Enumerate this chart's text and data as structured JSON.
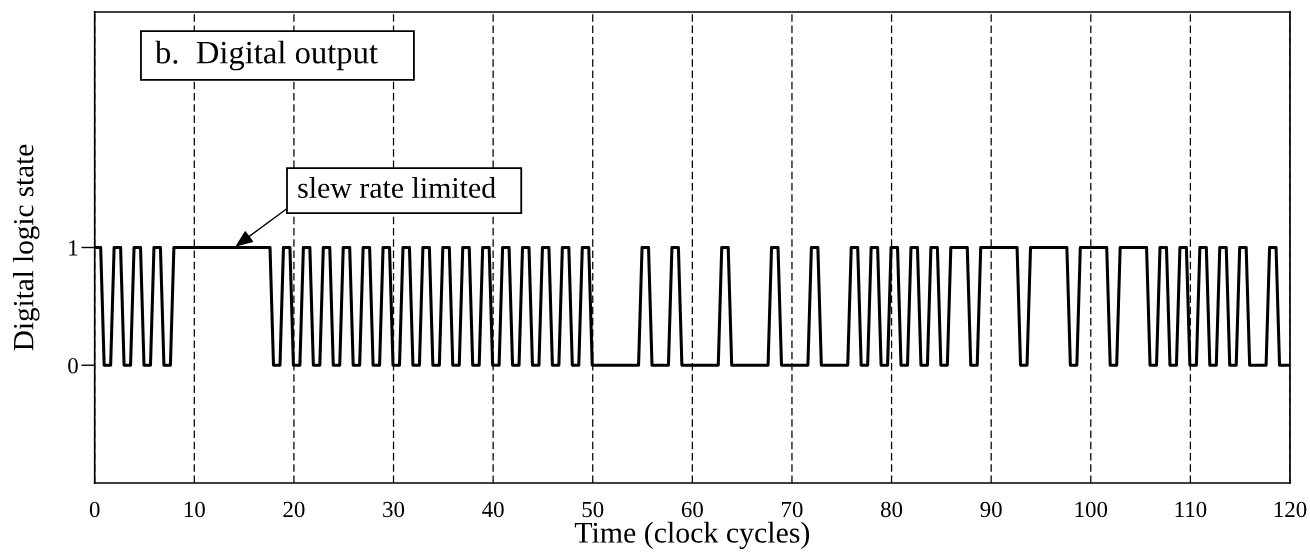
{
  "chart_data": {
    "type": "line",
    "title": "b.  Digital output",
    "xlabel": "Time (clock cycles)",
    "ylabel": "Digital logic state",
    "x": [
      0,
      0.6,
      0.95,
      1.6,
      1.95,
      2.6,
      2.95,
      3.6,
      3.95,
      4.6,
      4.95,
      5.6,
      5.95,
      6.6,
      6.95,
      7.6,
      7.95,
      17.6,
      17.95,
      18.6,
      18.95,
      19.6,
      19.95,
      20.6,
      20.95,
      21.6,
      21.95,
      22.6,
      22.95,
      23.6,
      23.95,
      24.6,
      24.95,
      25.6,
      25.95,
      26.6,
      26.95,
      27.6,
      27.95,
      28.6,
      28.95,
      29.6,
      29.95,
      30.6,
      30.95,
      31.6,
      31.95,
      32.6,
      32.95,
      33.6,
      33.95,
      34.6,
      34.95,
      35.6,
      35.95,
      36.6,
      36.95,
      37.6,
      37.95,
      38.6,
      38.95,
      39.6,
      39.95,
      40.6,
      40.95,
      41.6,
      41.95,
      42.6,
      42.95,
      43.6,
      43.95,
      44.6,
      44.95,
      45.6,
      45.95,
      46.6,
      46.95,
      47.6,
      47.95,
      48.6,
      48.95,
      49.6,
      49.95,
      54.6,
      54.95,
      55.6,
      55.95,
      57.6,
      57.95,
      58.6,
      58.95,
      62.6,
      62.95,
      63.6,
      63.95,
      67.6,
      67.95,
      68.6,
      68.95,
      71.6,
      71.95,
      72.6,
      72.95,
      75.6,
      75.95,
      76.6,
      76.95,
      77.6,
      77.95,
      78.6,
      78.95,
      79.6,
      79.95,
      80.6,
      80.95,
      81.6,
      81.95,
      82.6,
      82.95,
      83.6,
      83.95,
      84.6,
      84.95,
      85.6,
      85.95,
      87.6,
      87.95,
      88.6,
      88.95,
      92.6,
      92.95,
      93.6,
      93.95,
      97.6,
      97.95,
      98.6,
      98.95,
      101.6,
      101.95,
      102.6,
      102.95,
      105.6,
      105.95,
      106.6,
      106.95,
      107.6,
      107.95,
      108.6,
      108.95,
      109.6,
      109.95,
      110.6,
      110.95,
      111.6,
      111.95,
      112.6,
      112.95,
      113.6,
      113.95,
      114.6,
      114.95,
      115.6,
      115.95,
      117.6,
      117.95,
      118.6,
      118.95,
      120
    ],
    "series": [
      {
        "color": "#000000",
        "values": [
          1,
          1,
          0,
          0,
          1,
          1,
          0,
          0,
          1,
          1,
          0,
          0,
          1,
          1,
          0,
          0,
          1,
          1,
          0,
          0,
          1,
          1,
          0,
          0,
          1,
          1,
          0,
          0,
          1,
          1,
          0,
          0,
          1,
          1,
          0,
          0,
          1,
          1,
          0,
          0,
          1,
          1,
          0,
          0,
          1,
          1,
          0,
          0,
          1,
          1,
          0,
          0,
          1,
          1,
          0,
          0,
          1,
          1,
          0,
          0,
          1,
          1,
          0,
          0,
          1,
          1,
          0,
          0,
          1,
          1,
          0,
          0,
          1,
          1,
          0,
          0,
          1,
          1,
          0,
          0,
          1,
          1,
          0,
          0,
          1,
          1,
          0,
          0,
          1,
          1,
          0,
          0,
          1,
          1,
          0,
          0,
          1,
          1,
          0,
          0,
          1,
          1,
          0,
          0,
          1,
          1,
          0,
          0,
          1,
          1,
          0,
          0,
          1,
          1,
          0,
          0,
          1,
          1,
          0,
          0,
          1,
          1,
          0,
          0,
          1,
          1,
          0,
          0,
          1,
          1,
          0,
          0,
          1,
          1,
          0,
          0,
          1,
          1,
          0,
          0,
          1,
          1,
          0,
          0,
          1,
          1,
          0,
          0,
          1,
          1,
          0,
          0,
          1,
          1,
          0,
          0,
          1,
          1,
          0,
          0,
          1,
          1,
          0,
          0,
          1,
          1,
          0,
          0
        ]
      }
    ],
    "xlim": [
      0,
      120
    ],
    "ylim": [
      -1,
      3
    ],
    "xticks": [
      0,
      10,
      20,
      30,
      40,
      50,
      60,
      70,
      80,
      90,
      100,
      110,
      120
    ],
    "yticks": [
      0,
      1
    ],
    "grid": "x",
    "annotations": [
      {
        "text": "slew rate limited",
        "x": 14,
        "y": 1
      }
    ]
  }
}
